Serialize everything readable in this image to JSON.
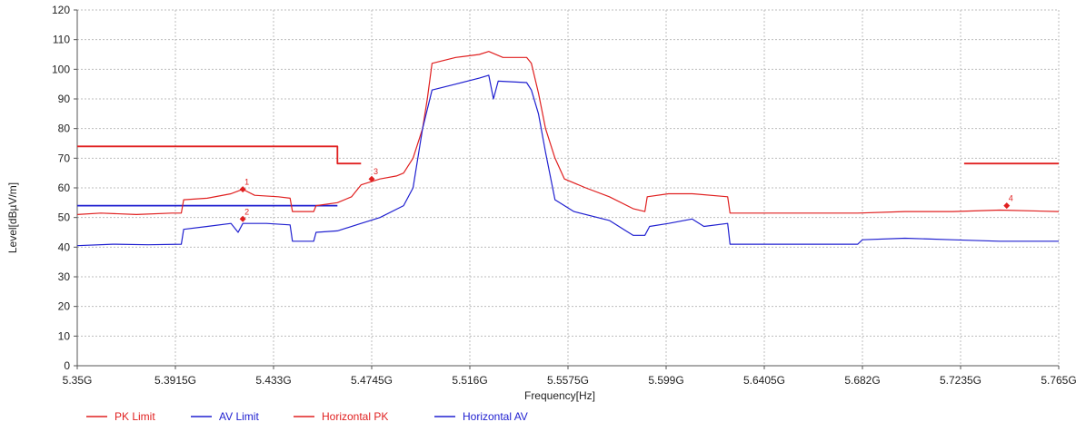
{
  "chart_data": {
    "type": "line",
    "title": "",
    "xlabel": "Frequency[Hz]",
    "ylabel": "Level[dBµV/m]",
    "xlim": [
      5.35,
      5.765
    ],
    "ylim": [
      0,
      120
    ],
    "grid": true,
    "legend_position": "bottom-left",
    "x_ticks": [
      {
        "value": 5.35,
        "label": "5.35G"
      },
      {
        "value": 5.3915,
        "label": "5.3915G"
      },
      {
        "value": 5.433,
        "label": "5.433G"
      },
      {
        "value": 5.4745,
        "label": "5.4745G"
      },
      {
        "value": 5.516,
        "label": "5.516G"
      },
      {
        "value": 5.5575,
        "label": "5.5575G"
      },
      {
        "value": 5.599,
        "label": "5.599G"
      },
      {
        "value": 5.6405,
        "label": "5.6405G"
      },
      {
        "value": 5.682,
        "label": "5.682G"
      },
      {
        "value": 5.7235,
        "label": "5.7235G"
      },
      {
        "value": 5.765,
        "label": "5.765G"
      }
    ],
    "y_ticks": [
      {
        "value": 0,
        "label": "0"
      },
      {
        "value": 10,
        "label": "10"
      },
      {
        "value": 20,
        "label": "20"
      },
      {
        "value": 30,
        "label": "30"
      },
      {
        "value": 40,
        "label": "40"
      },
      {
        "value": 50,
        "label": "50"
      },
      {
        "value": 60,
        "label": "60"
      },
      {
        "value": 70,
        "label": "70"
      },
      {
        "value": 80,
        "label": "80"
      },
      {
        "value": 90,
        "label": "90"
      },
      {
        "value": 100,
        "label": "100"
      },
      {
        "value": 110,
        "label": "110"
      },
      {
        "value": 120,
        "label": "120"
      }
    ],
    "series": [
      {
        "name": "PK Limit",
        "color": "#e02020",
        "segments": [
          [
            [
              5.35,
              74
            ],
            [
              5.46,
              74
            ],
            [
              5.46,
              68.2
            ],
            [
              5.47,
              68.2
            ]
          ],
          [
            [
              5.725,
              68.2
            ],
            [
              5.765,
              68.2
            ]
          ]
        ]
      },
      {
        "name": "AV Limit",
        "color": "#2020d0",
        "segments": [
          [
            [
              5.35,
              54
            ],
            [
              5.46,
              54
            ]
          ]
        ]
      },
      {
        "name": "Horizontal PK",
        "color": "#e02020",
        "points": [
          [
            5.35,
            51
          ],
          [
            5.36,
            51.5
          ],
          [
            5.375,
            51
          ],
          [
            5.39,
            51.5
          ],
          [
            5.394,
            51.5
          ],
          [
            5.395,
            56
          ],
          [
            5.405,
            56.5
          ],
          [
            5.415,
            58
          ],
          [
            5.42,
            59.5
          ],
          [
            5.425,
            57.5
          ],
          [
            5.435,
            57
          ],
          [
            5.44,
            56.5
          ],
          [
            5.441,
            52
          ],
          [
            5.45,
            52
          ],
          [
            5.451,
            54
          ],
          [
            5.46,
            55
          ],
          [
            5.466,
            57
          ],
          [
            5.47,
            61
          ],
          [
            5.478,
            63
          ],
          [
            5.485,
            64
          ],
          [
            5.488,
            65
          ],
          [
            5.492,
            70
          ],
          [
            5.496,
            80
          ],
          [
            5.498,
            90
          ],
          [
            5.5,
            102
          ],
          [
            5.51,
            104
          ],
          [
            5.52,
            105
          ],
          [
            5.524,
            106
          ],
          [
            5.53,
            104
          ],
          [
            5.54,
            104
          ],
          [
            5.542,
            102
          ],
          [
            5.545,
            92
          ],
          [
            5.548,
            80
          ],
          [
            5.552,
            70
          ],
          [
            5.556,
            63
          ],
          [
            5.565,
            60
          ],
          [
            5.575,
            57
          ],
          [
            5.585,
            53
          ],
          [
            5.59,
            52
          ],
          [
            5.591,
            57
          ],
          [
            5.6,
            58
          ],
          [
            5.61,
            58
          ],
          [
            5.625,
            57
          ],
          [
            5.626,
            51.5
          ],
          [
            5.65,
            51.5
          ],
          [
            5.68,
            51.5
          ],
          [
            5.7,
            52
          ],
          [
            5.72,
            52
          ],
          [
            5.74,
            52.5
          ],
          [
            5.765,
            52
          ]
        ]
      },
      {
        "name": "Horizontal AV",
        "color": "#2020d0",
        "points": [
          [
            5.35,
            40.5
          ],
          [
            5.365,
            41
          ],
          [
            5.38,
            40.8
          ],
          [
            5.394,
            41
          ],
          [
            5.395,
            46
          ],
          [
            5.405,
            47
          ],
          [
            5.415,
            48
          ],
          [
            5.418,
            45
          ],
          [
            5.42,
            48
          ],
          [
            5.43,
            48
          ],
          [
            5.44,
            47.5
          ],
          [
            5.441,
            42
          ],
          [
            5.45,
            42
          ],
          [
            5.451,
            45
          ],
          [
            5.46,
            45.5
          ],
          [
            5.47,
            48
          ],
          [
            5.478,
            50
          ],
          [
            5.488,
            54
          ],
          [
            5.492,
            60
          ],
          [
            5.496,
            80
          ],
          [
            5.5,
            93
          ],
          [
            5.51,
            95
          ],
          [
            5.52,
            97
          ],
          [
            5.524,
            98
          ],
          [
            5.526,
            90
          ],
          [
            5.528,
            96
          ],
          [
            5.54,
            95.5
          ],
          [
            5.542,
            93
          ],
          [
            5.545,
            85
          ],
          [
            5.548,
            72
          ],
          [
            5.552,
            56
          ],
          [
            5.56,
            52
          ],
          [
            5.575,
            49
          ],
          [
            5.585,
            44
          ],
          [
            5.59,
            44
          ],
          [
            5.592,
            47
          ],
          [
            5.6,
            48
          ],
          [
            5.61,
            49.5
          ],
          [
            5.615,
            47
          ],
          [
            5.625,
            48
          ],
          [
            5.626,
            41
          ],
          [
            5.65,
            41
          ],
          [
            5.68,
            41
          ],
          [
            5.682,
            42.5
          ],
          [
            5.7,
            43
          ],
          [
            5.72,
            42.5
          ],
          [
            5.74,
            42
          ],
          [
            5.765,
            42
          ]
        ]
      }
    ],
    "markers": [
      {
        "label": "1",
        "x": 5.42,
        "y": 59.5,
        "color": "#e02020"
      },
      {
        "label": "2",
        "x": 5.42,
        "y": 49.5,
        "color": "#e02020"
      },
      {
        "label": "3",
        "x": 5.4745,
        "y": 63,
        "color": "#e02020"
      },
      {
        "label": "4",
        "x": 5.743,
        "y": 54,
        "color": "#e02020"
      }
    ]
  },
  "legend": [
    {
      "label": "PK Limit",
      "color": "#e02020"
    },
    {
      "label": "AV Limit",
      "color": "#2020d0"
    },
    {
      "label": "Horizontal PK",
      "color": "#e02020"
    },
    {
      "label": "Horizontal AV",
      "color": "#2020d0"
    }
  ]
}
